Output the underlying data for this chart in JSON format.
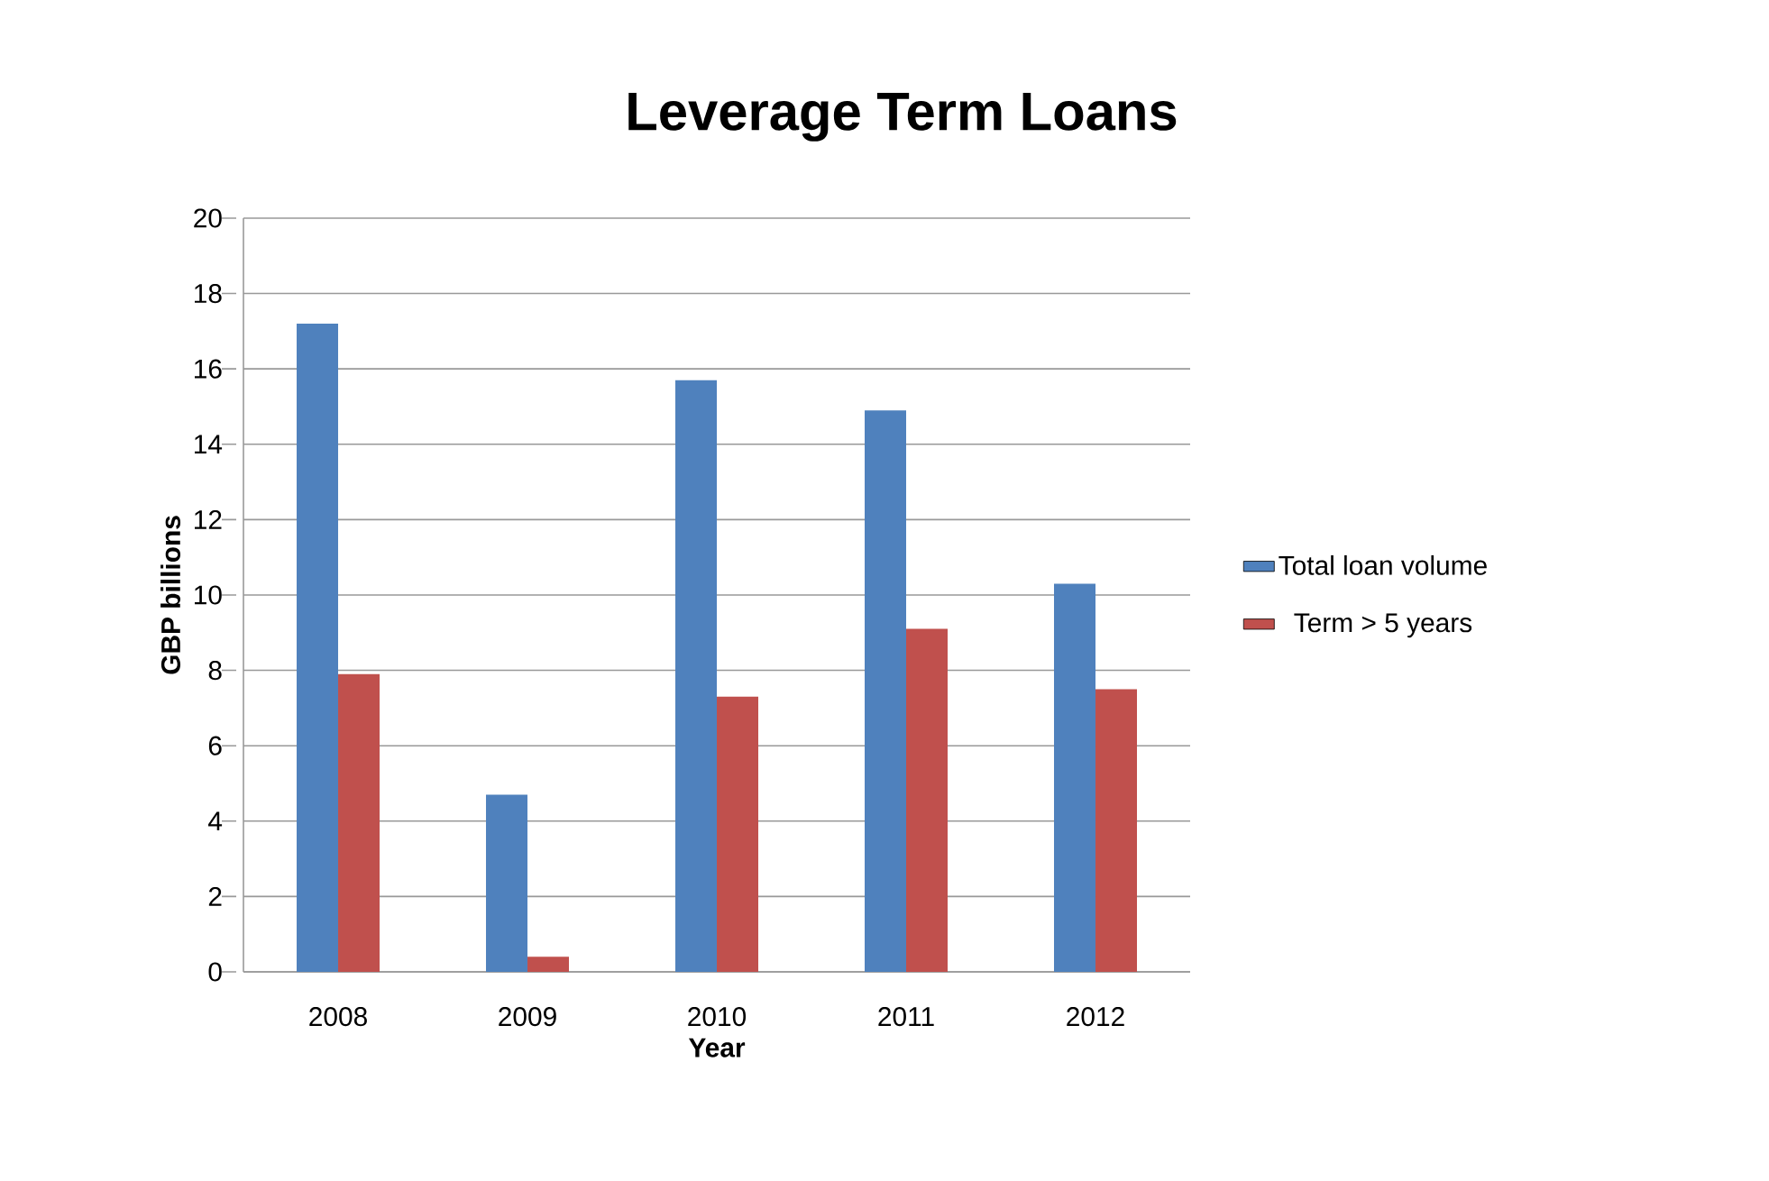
{
  "chart_data": {
    "type": "bar",
    "title": "Leverage Term Loans",
    "xlabel": "Year",
    "ylabel": "GBP billions",
    "categories": [
      "2008",
      "2009",
      "2010",
      "2011",
      "2012"
    ],
    "series": [
      {
        "name": "Total loan volume",
        "color": "#4f81bd",
        "values": [
          17.2,
          4.7,
          15.7,
          14.9,
          10.3
        ]
      },
      {
        "name": "Term > 5 years",
        "color": "#c0504d",
        "values": [
          7.9,
          0.4,
          7.3,
          9.1,
          7.5
        ]
      }
    ],
    "ylim": [
      0,
      20
    ],
    "yticks": [
      0,
      2,
      4,
      6,
      8,
      10,
      12,
      14,
      16,
      18,
      20
    ],
    "grid": "y",
    "legend": "right"
  }
}
